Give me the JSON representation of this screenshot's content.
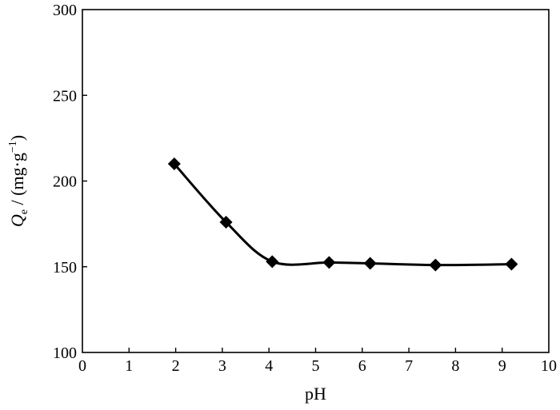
{
  "chart_data": {
    "type": "line",
    "title": "",
    "xlabel": "pH",
    "ylabel": {
      "symbol": "Q",
      "subscript": "e",
      "rest": " / (mg·g",
      "superscript": "−1",
      "close": ")"
    },
    "xlim": [
      0,
      10
    ],
    "ylim": [
      100,
      300
    ],
    "xticks": [
      "0",
      "1",
      "2",
      "3",
      "4",
      "5",
      "6",
      "7",
      "8",
      "9",
      "10"
    ],
    "yticks": [
      "100",
      "150",
      "200",
      "250",
      "300"
    ],
    "grid": false,
    "legend": "none",
    "series": [
      {
        "marker": "diamond",
        "color": "#000000",
        "x": [
          1.97,
          3.08,
          4.07,
          5.29,
          6.17,
          7.57,
          9.2
        ],
        "y": [
          210,
          176,
          153,
          152.5,
          152,
          151,
          151.5
        ]
      }
    ]
  }
}
